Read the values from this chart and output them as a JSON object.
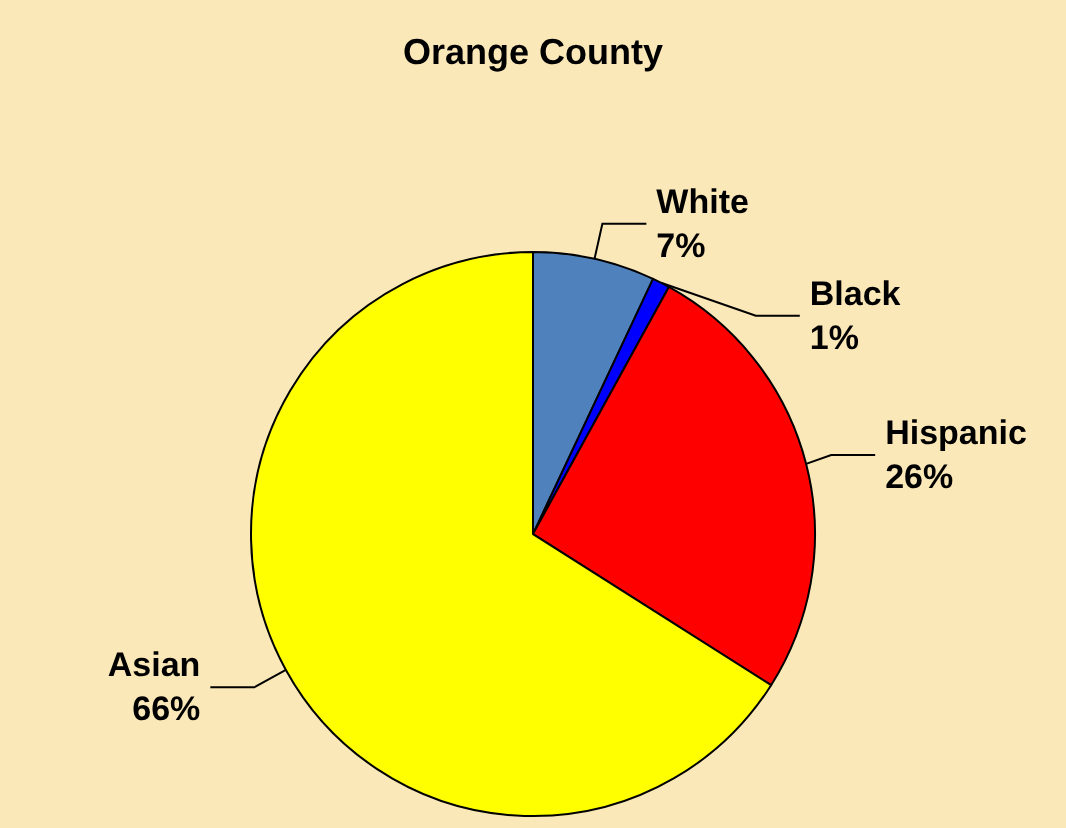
{
  "chart_data": {
    "type": "pie",
    "title": "Orange County",
    "categories": [
      "White",
      "Black",
      "Hispanic",
      "Asian"
    ],
    "values": [
      7,
      1,
      26,
      66
    ],
    "value_labels": [
      "7%",
      "1%",
      "26%",
      "66%"
    ],
    "colors": [
      "#4f81bd",
      "#0000ff",
      "#ff0000",
      "#ffff00"
    ]
  }
}
